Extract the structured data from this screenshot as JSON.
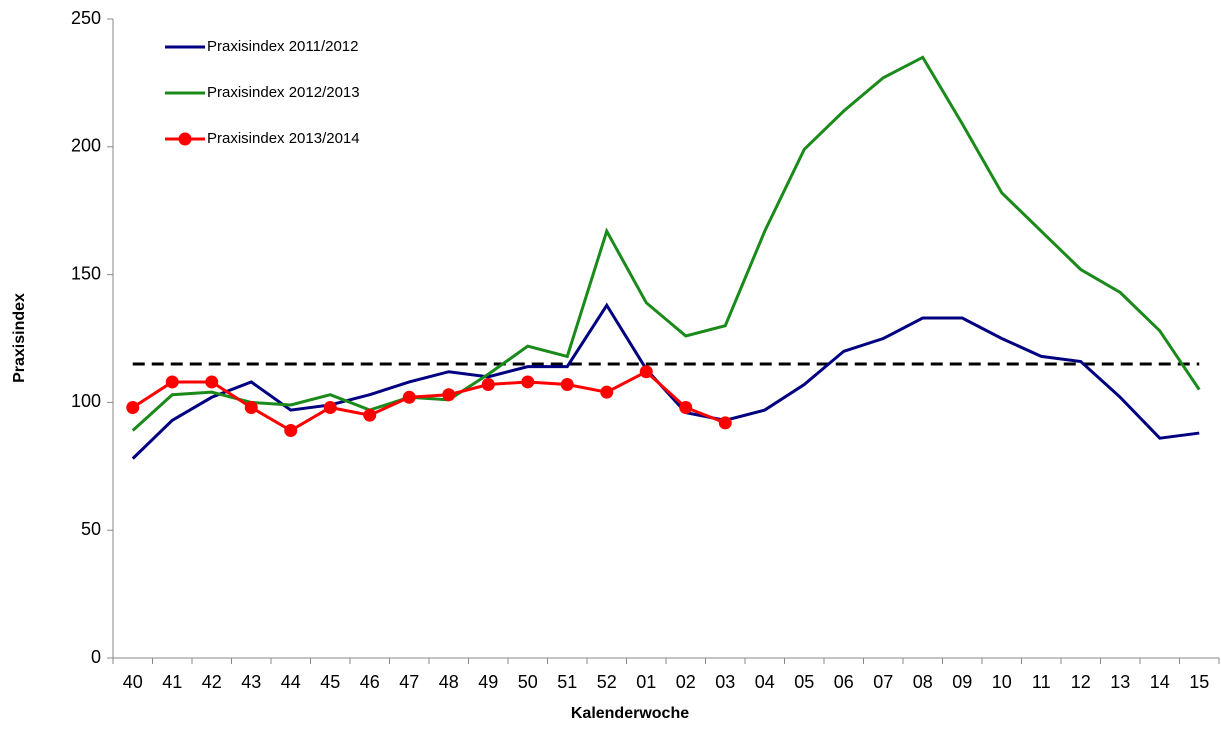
{
  "chart_data": {
    "type": "line",
    "x_label": "Kalenderwoche",
    "y_label": "Praxisindex",
    "categories": [
      "40",
      "41",
      "42",
      "43",
      "44",
      "45",
      "46",
      "47",
      "48",
      "49",
      "50",
      "51",
      "52",
      "01",
      "02",
      "03",
      "04",
      "05",
      "06",
      "07",
      "08",
      "09",
      "10",
      "11",
      "12",
      "13",
      "14",
      "15"
    ],
    "series": [
      {
        "name": "Praxisindex 2011/2012",
        "color": "#000080",
        "marker": false,
        "values": [
          78,
          93,
          102,
          108,
          97,
          99,
          103,
          108,
          112,
          110,
          114,
          114,
          138,
          113,
          96,
          93,
          97,
          107,
          120,
          125,
          133,
          133,
          125,
          118,
          116,
          102,
          86,
          88
        ]
      },
      {
        "name": "Praxisindex 2012/2013",
        "color": "#1a8a1a",
        "marker": false,
        "values": [
          89,
          103,
          104,
          100,
          99,
          103,
          97,
          102,
          101,
          111,
          122,
          118,
          167,
          139,
          126,
          130,
          167,
          199,
          214,
          227,
          235,
          209,
          182,
          167,
          152,
          143,
          128,
          105
        ]
      },
      {
        "name": "Praxisindex 2013/2014",
        "color": "#ff0000",
        "marker": true,
        "values": [
          98,
          108,
          108,
          98,
          89,
          98,
          95,
          102,
          103,
          107,
          108,
          107,
          104,
          112,
          98,
          92,
          null,
          null,
          null,
          null,
          null,
          null,
          null,
          null,
          null,
          null,
          null,
          null
        ]
      }
    ],
    "threshold": 115,
    "ylim": [
      0,
      250
    ],
    "yticks": [
      0,
      50,
      100,
      150,
      200,
      250
    ],
    "grid": false,
    "legend": "top-left"
  }
}
